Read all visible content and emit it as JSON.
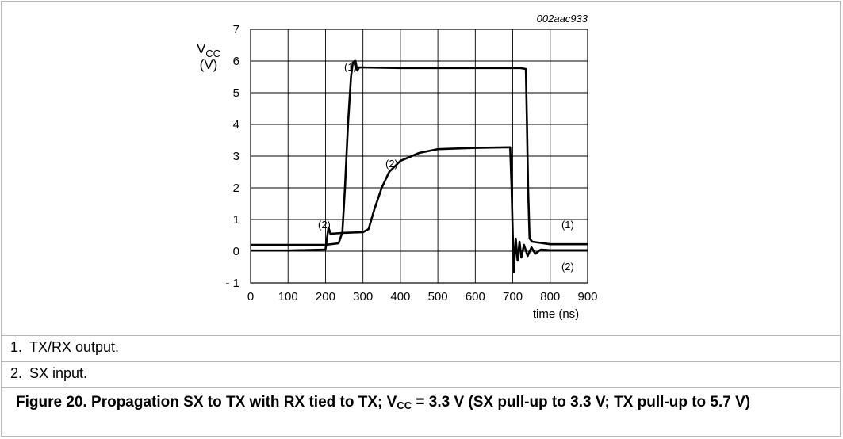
{
  "chart_data": {
    "type": "line",
    "figure_id": "002aac933",
    "ylabel_main": "V",
    "ylabel_sub": "CC",
    "yunit": "(V)",
    "xlabel": "time (ns)",
    "xlim": [
      0,
      900
    ],
    "ylim": [
      -1,
      7
    ],
    "xticks": [
      0,
      100,
      200,
      300,
      400,
      500,
      600,
      700,
      800,
      900
    ],
    "yticks": [
      7,
      6,
      5,
      4,
      3,
      2,
      1,
      0,
      -1
    ],
    "ytick_labels": [
      "7",
      "6",
      "5",
      "4",
      "3",
      "2",
      "1",
      "0",
      "- 1"
    ],
    "grid": true,
    "series": [
      {
        "name": "(1)",
        "points": [
          [
            0,
            0.2
          ],
          [
            100,
            0.2
          ],
          [
            200,
            0.2
          ],
          [
            235,
            0.25
          ],
          [
            245,
            0.6
          ],
          [
            252,
            2.0
          ],
          [
            260,
            4.0
          ],
          [
            268,
            5.5
          ],
          [
            273,
            5.95
          ],
          [
            280,
            6.0
          ],
          [
            285,
            5.7
          ],
          [
            290,
            5.8
          ],
          [
            400,
            5.78
          ],
          [
            500,
            5.78
          ],
          [
            600,
            5.78
          ],
          [
            700,
            5.78
          ],
          [
            720,
            5.78
          ],
          [
            735,
            5.75
          ],
          [
            738,
            4.0
          ],
          [
            741,
            2.0
          ],
          [
            745,
            0.4
          ],
          [
            752,
            0.3
          ],
          [
            800,
            0.22
          ],
          [
            900,
            0.22
          ]
        ]
      },
      {
        "name": "(2)",
        "points": [
          [
            0,
            0.02
          ],
          [
            100,
            0.02
          ],
          [
            200,
            0.05
          ],
          [
            208,
            0.75
          ],
          [
            213,
            0.55
          ],
          [
            250,
            0.58
          ],
          [
            300,
            0.6
          ],
          [
            315,
            0.7
          ],
          [
            330,
            1.3
          ],
          [
            350,
            2.0
          ],
          [
            370,
            2.5
          ],
          [
            400,
            2.85
          ],
          [
            450,
            3.1
          ],
          [
            500,
            3.22
          ],
          [
            600,
            3.26
          ],
          [
            693,
            3.28
          ],
          [
            697,
            2.0
          ],
          [
            700,
            0.5
          ],
          [
            703,
            -0.65
          ],
          [
            708,
            0.4
          ],
          [
            713,
            -0.3
          ],
          [
            718,
            0.3
          ],
          [
            723,
            -0.2
          ],
          [
            730,
            0.2
          ],
          [
            740,
            -0.15
          ],
          [
            750,
            0.12
          ],
          [
            760,
            -0.08
          ],
          [
            775,
            0.05
          ],
          [
            800,
            0.03
          ],
          [
            900,
            0.03
          ]
        ]
      }
    ],
    "annotations": [
      {
        "text": "(1)",
        "x": 250,
        "y": 5.7
      },
      {
        "text": "(2)",
        "x": 180,
        "y": 0.72
      },
      {
        "text": "(2)",
        "x": 360,
        "y": 2.65
      },
      {
        "text": "(1)",
        "x": 830,
        "y": 0.72
      },
      {
        "text": "(2)",
        "x": 830,
        "y": -0.6
      }
    ]
  },
  "notes": [
    {
      "num": "1.",
      "text": "TX/RX output."
    },
    {
      "num": "2.",
      "text": "SX input."
    }
  ],
  "caption": {
    "prefix": "Figure 20.  Propagation SX to TX with RX tied to TX; V",
    "sub": "CC",
    "suffix": " = 3.3 V (SX pull-up to 3.3 V; TX pull-up to 5.7 V)"
  }
}
